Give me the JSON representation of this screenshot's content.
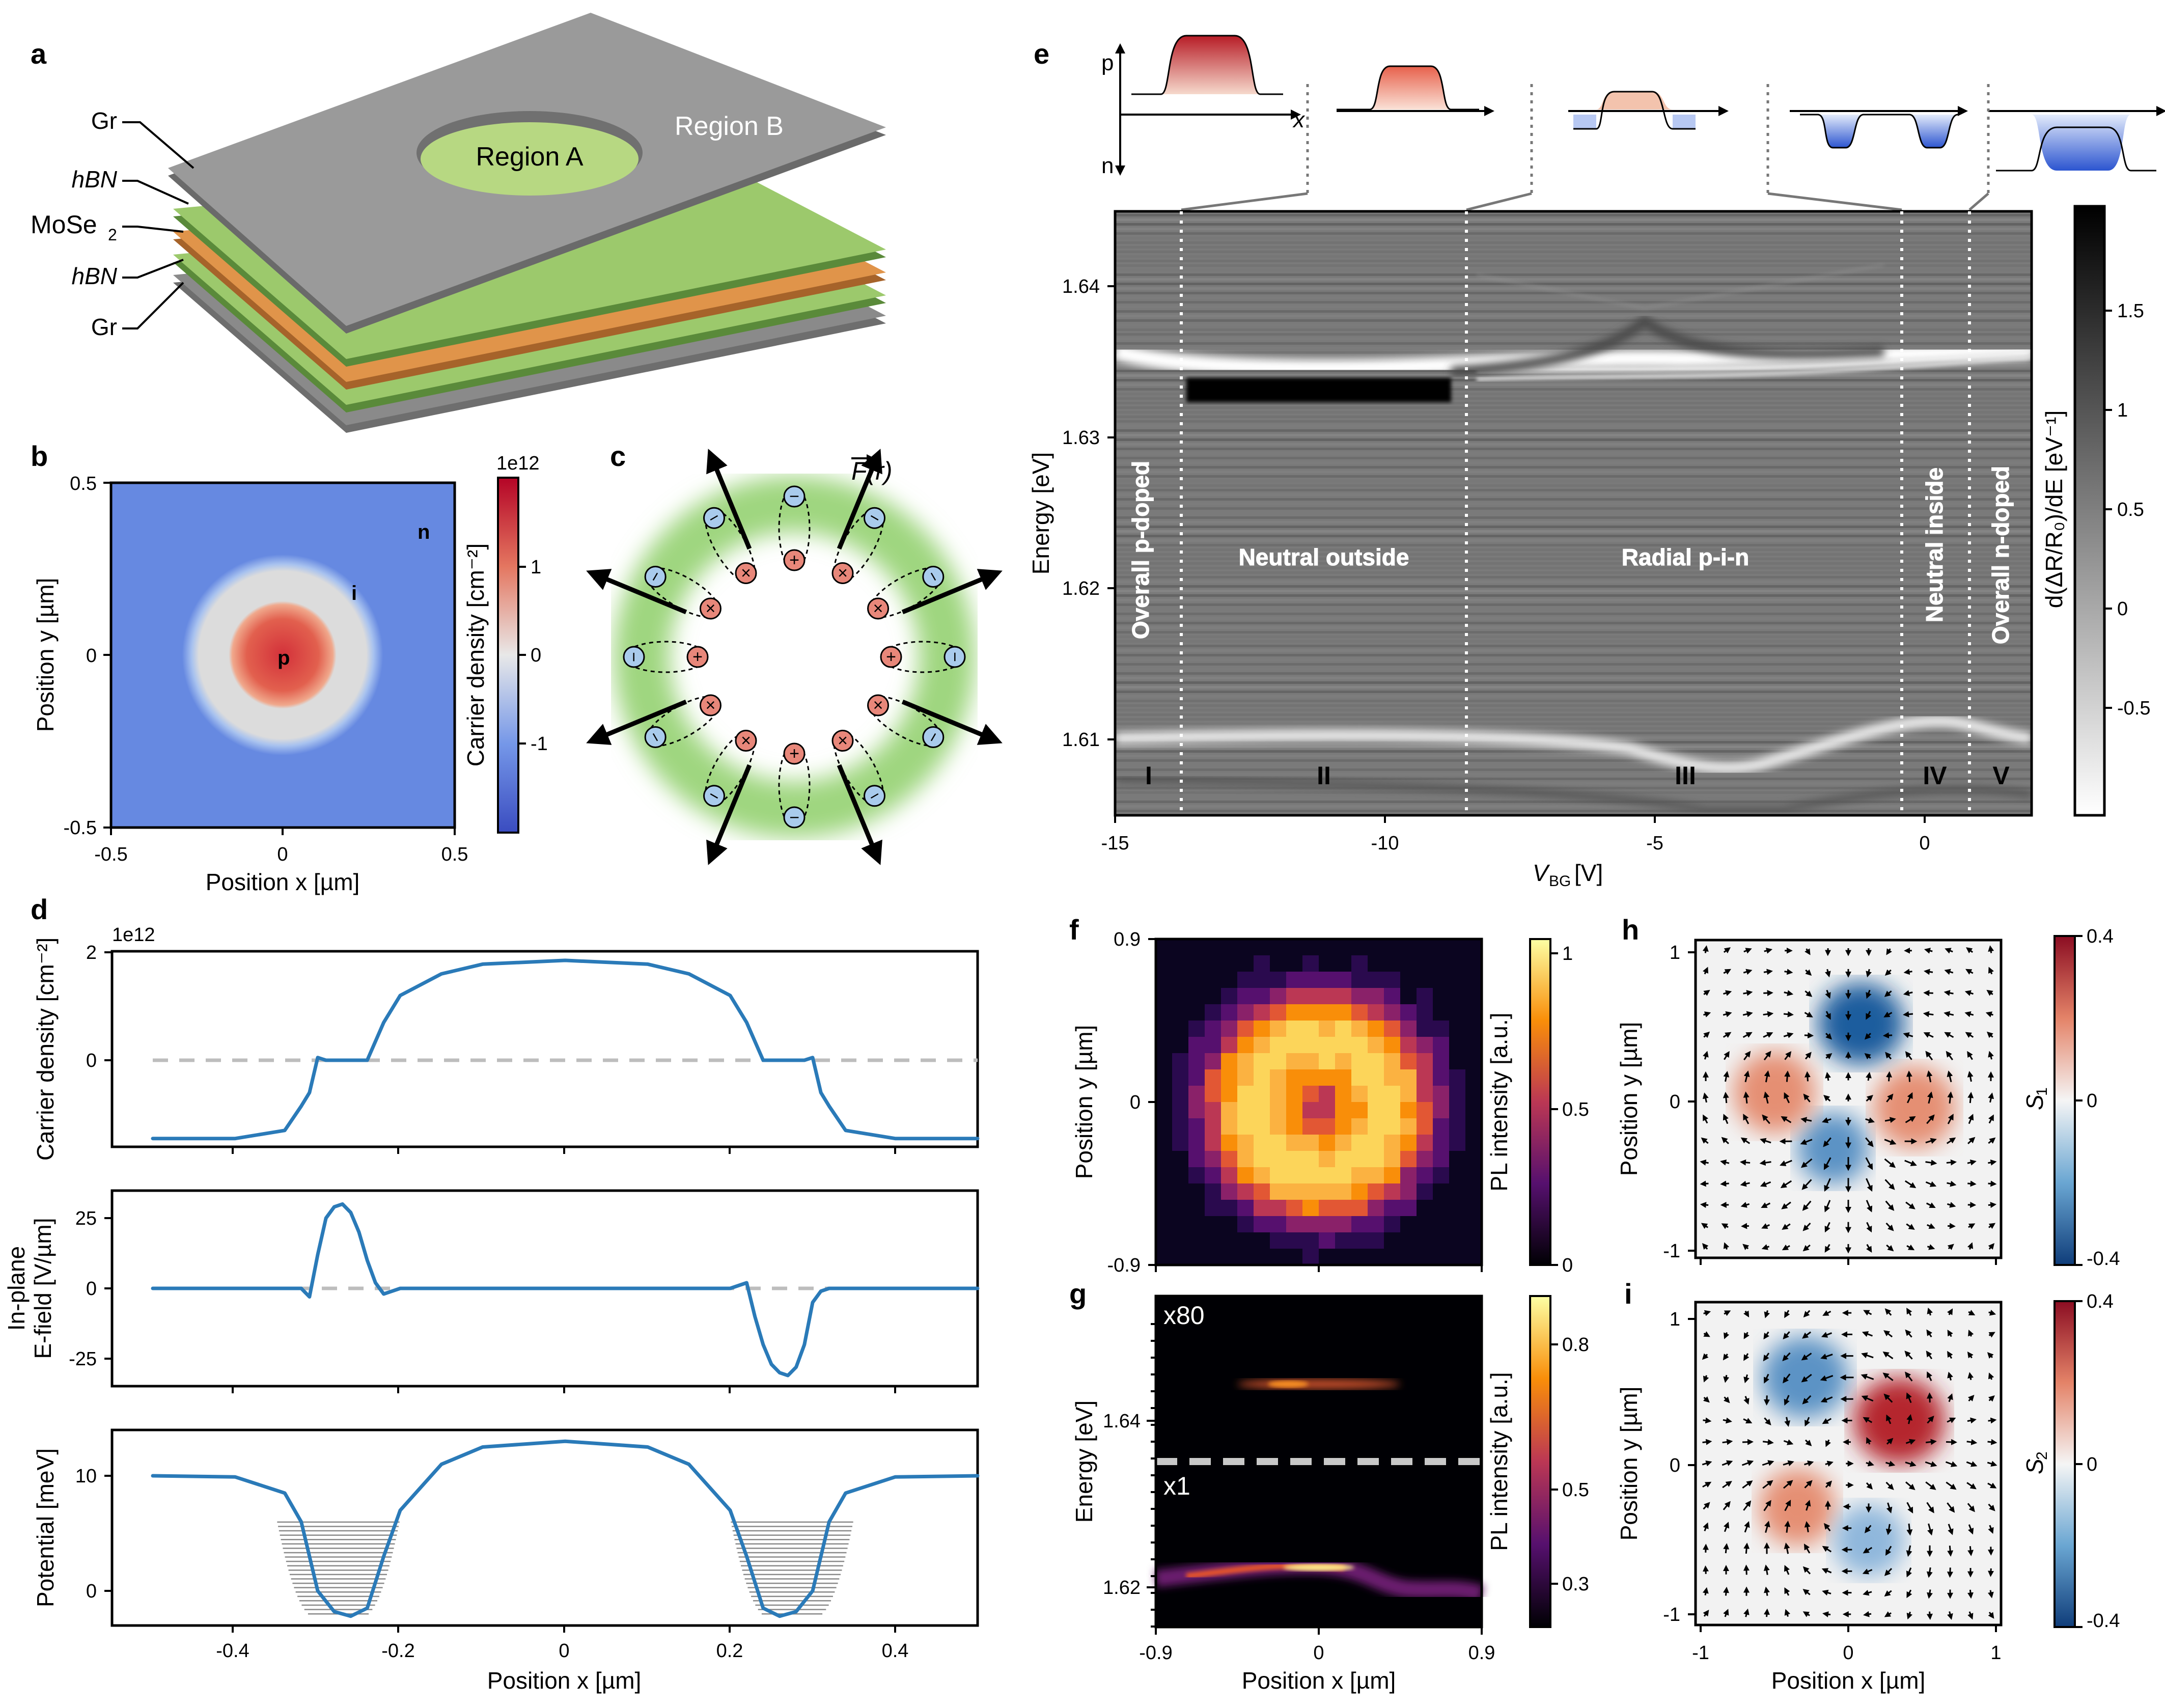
{
  "panels": {
    "a": {
      "letter": "a",
      "layers": [
        "Gr",
        "hBN",
        "MoSe2",
        "hBN",
        "Gr"
      ],
      "layer_labels": {
        "gr_top": "Gr",
        "hbn_top": "hBN",
        "mose2": "MoSe",
        "mose2_sub": "2",
        "hbn_bot": "hBN",
        "gr_bot": "Gr"
      },
      "region_a": "Region A",
      "region_b": "Region B"
    },
    "b": {
      "letter": "b",
      "xlabel": "Position x [µm]",
      "ylabel": "Position y [µm]",
      "xticks": [
        "-0.5",
        "0",
        "0.5"
      ],
      "yticks": [
        "0.5",
        "0",
        "-0.5"
      ],
      "zone_labels": {
        "n": "n",
        "i": "i",
        "p": "p"
      },
      "colorbar": {
        "label": "Carrier density [cm⁻²]",
        "exponent": "1e12",
        "ticks": [
          "1",
          "0",
          "-1"
        ]
      }
    },
    "c": {
      "letter": "c",
      "force_label": "F(r)",
      "charges": {
        "plus": "+",
        "minus": "−",
        "cross": "×"
      }
    },
    "d": {
      "letter": "d",
      "exponent": "1e12",
      "ylabel_top": "Carrier density [cm⁻²]",
      "ylabel_mid_1": "In-plane",
      "ylabel_mid_2": "E-field [V/µm]",
      "ylabel_bot": "Potential [meV]",
      "yticks_top": [
        "2",
        "0"
      ],
      "yticks_mid": [
        "25",
        "0",
        "-25"
      ],
      "yticks_bot": [
        "10",
        "0"
      ],
      "xticks": [
        "-0.4",
        "-0.2",
        "0",
        "0.2",
        "0.4"
      ],
      "xlabel": "Position x [µm]"
    },
    "e": {
      "letter": "e",
      "ylabel": "Energy [eV]",
      "xlabel_main": "V",
      "xlabel_sub": "BG",
      "xlabel_unit": " [V]",
      "yticks": [
        "1.64",
        "1.63",
        "1.62",
        "1.61"
      ],
      "xticks": [
        "-15",
        "-10",
        "-5",
        "0"
      ],
      "regions": [
        "Overall p-doped",
        "Neutral outside",
        "Radial p-i-n",
        "Neutral inside",
        "Overall n-doped"
      ],
      "roman": [
        "I",
        "II",
        "III",
        "IV",
        "V"
      ],
      "inset_labels": {
        "p": "p",
        "n": "n",
        "x": "x"
      },
      "colorbar": {
        "label": "d(ΔR/R₀)/dE [eV⁻¹]",
        "ticks": [
          "1.5",
          "1",
          "0.5",
          "0",
          "-0.5"
        ]
      }
    },
    "f": {
      "letter": "f",
      "ylabel": "Position y [µm]",
      "yticks": [
        "0.9",
        "0",
        "-0.9"
      ],
      "colorbar": {
        "label": "PL intensity [a.u.]",
        "ticks": [
          "1",
          "0.5",
          "0"
        ]
      }
    },
    "g": {
      "letter": "g",
      "ylabel": "Energy [eV]",
      "yticks": [
        "1.64",
        "1.62"
      ],
      "xticks": [
        "-0.9",
        "0",
        "0.9"
      ],
      "xlabel": "Position x [µm]",
      "scale_top": "x80",
      "scale_bot": "x1",
      "colorbar": {
        "label": "PL intensity [a.u.]",
        "ticks": [
          "0.8",
          "0.5",
          "0.3"
        ]
      }
    },
    "h": {
      "letter": "h",
      "ylabel": "Position y [µm]",
      "yticks": [
        "1",
        "0",
        "-1"
      ],
      "colorbar": {
        "label": "S",
        "sub": "1",
        "ticks": [
          "0.4",
          "0",
          "-0.4"
        ]
      }
    },
    "i": {
      "letter": "i",
      "ylabel": "Position y [µm]",
      "yticks": [
        "1",
        "0",
        "-1"
      ],
      "xticks": [
        "-1",
        "0",
        "1"
      ],
      "xlabel": "Position x [µm]",
      "colorbar": {
        "label": "S",
        "sub": "2",
        "ticks": [
          "0.4",
          "0",
          "-0.4"
        ]
      }
    }
  },
  "chart_data": [
    {
      "type": "line",
      "panel": "d-top",
      "title": "",
      "xlabel": "Position x [µm]",
      "ylabel": "Carrier density [cm⁻²]",
      "xlim": [
        -0.5,
        0.5
      ],
      "ylim": [
        -1.5,
        2.0
      ],
      "x": [
        -0.5,
        -0.4,
        -0.34,
        -0.32,
        -0.31,
        -0.3,
        -0.29,
        -0.24,
        -0.22,
        -0.2,
        -0.15,
        -0.1,
        0,
        0.1,
        0.15,
        0.2,
        0.22,
        0.24,
        0.29,
        0.3,
        0.31,
        0.32,
        0.34,
        0.4,
        0.5
      ],
      "y": [
        -1.45,
        -1.45,
        -1.3,
        -0.85,
        -0.6,
        0.05,
        0.0,
        0.0,
        0.7,
        1.2,
        1.6,
        1.78,
        1.85,
        1.78,
        1.6,
        1.2,
        0.7,
        0.0,
        0.0,
        0.05,
        -0.6,
        -0.85,
        -1.3,
        -1.45,
        -1.45
      ]
    },
    {
      "type": "line",
      "panel": "d-mid",
      "xlabel": "Position x [µm]",
      "ylabel": "In-plane E-field [V/µm]",
      "xlim": [
        -0.5,
        0.5
      ],
      "ylim": [
        -33,
        33
      ],
      "x": [
        -0.5,
        -0.32,
        -0.31,
        -0.3,
        -0.29,
        -0.28,
        -0.27,
        -0.26,
        -0.25,
        -0.24,
        -0.23,
        -0.22,
        -0.2,
        0,
        0.2,
        0.22,
        0.23,
        0.24,
        0.25,
        0.26,
        0.27,
        0.28,
        0.29,
        0.3,
        0.31,
        0.32,
        0.5
      ],
      "y": [
        0,
        0,
        -3,
        12,
        25,
        29,
        30,
        27,
        20,
        10,
        2,
        -2,
        0,
        0,
        0,
        2,
        -10,
        -20,
        -27,
        -30,
        -31,
        -28,
        -20,
        -5,
        -1,
        0,
        0
      ]
    },
    {
      "type": "line",
      "panel": "d-bot",
      "xlabel": "Position x [µm]",
      "ylabel": "Potential [meV]",
      "xlim": [
        -0.5,
        0.5
      ],
      "ylim": [
        -3,
        14
      ],
      "x": [
        -0.5,
        -0.4,
        -0.34,
        -0.32,
        -0.3,
        -0.28,
        -0.26,
        -0.24,
        -0.22,
        -0.2,
        -0.15,
        -0.1,
        0,
        0.1,
        0.15,
        0.2,
        0.22,
        0.24,
        0.26,
        0.28,
        0.3,
        0.32,
        0.34,
        0.4,
        0.5
      ],
      "y": [
        10,
        9.9,
        8.5,
        6,
        0,
        -1.8,
        -2.2,
        -1.5,
        3,
        7,
        11,
        12.5,
        13,
        12.5,
        11,
        7,
        3,
        -1.5,
        -2.2,
        -1.8,
        0,
        6,
        8.5,
        9.9,
        10
      ]
    },
    {
      "type": "heatmap",
      "panel": "e",
      "title": "",
      "xlabel": "V_BG [V]",
      "ylabel": "Energy [eV]",
      "xlim": [
        -15,
        2
      ],
      "ylim": [
        1.605,
        1.645
      ],
      "region_bounds_V": [
        -13.9,
        -8.6,
        -0.4,
        0.9
      ]
    }
  ]
}
